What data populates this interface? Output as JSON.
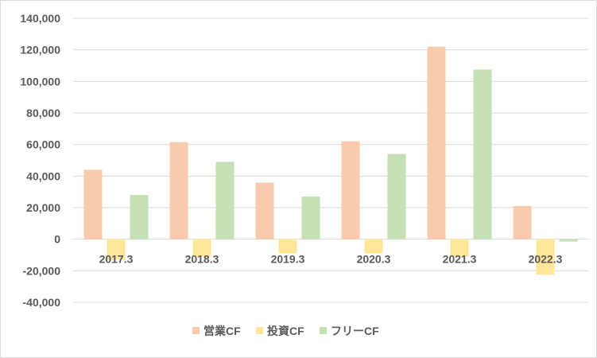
{
  "chart_data": {
    "type": "bar",
    "title": "",
    "xlabel": "",
    "ylabel": "",
    "categories": [
      "2017.3",
      "2018.3",
      "2019.3",
      "2020.3",
      "2021.3",
      "2022.3"
    ],
    "series": [
      {
        "name": "営業CF",
        "color": "#F8CBAD",
        "values": [
          44000,
          61500,
          35800,
          62000,
          122000,
          21000
        ]
      },
      {
        "name": "投資CF",
        "color": "#FFE699",
        "values": [
          -13000,
          -11000,
          -9000,
          -9000,
          -11000,
          -22500
        ]
      },
      {
        "name": "フリーCF",
        "color": "#C5E0B4",
        "values": [
          28000,
          49000,
          27000,
          54000,
          107500,
          -1500
        ]
      }
    ],
    "ylim": [
      -40000,
      140000
    ],
    "yticks": [
      140000,
      120000,
      100000,
      80000,
      60000,
      40000,
      20000,
      0,
      -20000,
      -40000
    ],
    "ytick_labels": [
      "140,000",
      "120,000",
      "100,000",
      "80,000",
      "60,000",
      "40,000",
      "20,000",
      "0",
      "-20,000",
      "-40,000"
    ],
    "grid": true,
    "gridline_color": "#d9d9d9",
    "legend_position": "bottom"
  }
}
